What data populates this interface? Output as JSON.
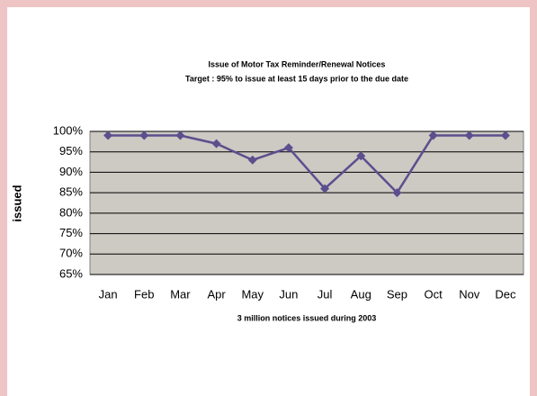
{
  "chart_data": {
    "type": "line",
    "title": "Issue of Motor Tax Reminder/Renewal Notices",
    "subtitle": "Target : 95% to issue at least 15 days prior to the due date",
    "y_label": "issued",
    "x_label": "3 million notices issued during 2003",
    "categories": [
      "Jan",
      "Feb",
      "Mar",
      "Apr",
      "May",
      "Jun",
      "Jul",
      "Aug",
      "Sep",
      "Oct",
      "Nov",
      "Dec"
    ],
    "values": [
      99,
      99,
      99,
      97,
      93,
      96,
      86,
      94,
      85,
      99,
      99,
      99
    ],
    "color": "#5b4f8e",
    "ylim": [
      65,
      100
    ],
    "yticks": [
      {
        "value": 65,
        "label": "65%"
      },
      {
        "value": 70,
        "label": "70%"
      },
      {
        "value": 75,
        "label": "75%"
      },
      {
        "value": 80,
        "label": "80%"
      },
      {
        "value": 85,
        "label": "85%"
      },
      {
        "value": 90,
        "label": "90%"
      },
      {
        "value": 95,
        "label": "95%"
      },
      {
        "value": 100,
        "label": "100%"
      }
    ],
    "grid": true
  }
}
